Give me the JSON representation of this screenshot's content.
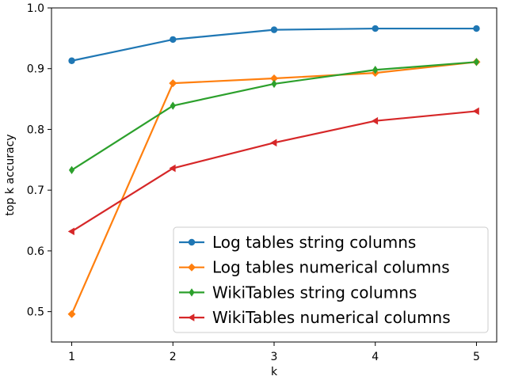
{
  "chart_data": {
    "type": "line",
    "xlabel": "k",
    "ylabel": "top k accuracy",
    "xlim": [
      0.8,
      5.2
    ],
    "ylim": [
      0.45,
      1.0
    ],
    "x": [
      1,
      2,
      3,
      4,
      5
    ],
    "xticks": [
      "1",
      "2",
      "3",
      "4",
      "5"
    ],
    "yticks": [
      "0.5",
      "0.6",
      "0.7",
      "0.8",
      "0.9",
      "1.0"
    ],
    "ytick_values": [
      0.5,
      0.6,
      0.7,
      0.8,
      0.9,
      1.0
    ],
    "grid": false,
    "legend_position": "lower-right",
    "series": [
      {
        "name": "Log tables string columns",
        "color": "#1f77b4",
        "marker": "circle",
        "values": [
          0.913,
          0.948,
          0.964,
          0.966,
          0.966
        ]
      },
      {
        "name": "Log tables numerical columns",
        "color": "#ff7f0e",
        "marker": "diamond",
        "values": [
          0.496,
          0.876,
          0.884,
          0.893,
          0.911
        ]
      },
      {
        "name": "WikiTables string columns",
        "color": "#2ca02c",
        "marker": "thin-diamond",
        "values": [
          0.733,
          0.839,
          0.875,
          0.898,
          0.911
        ]
      },
      {
        "name": "WikiTables numerical columns",
        "color": "#d62728",
        "marker": "triangle-left",
        "values": [
          0.632,
          0.736,
          0.778,
          0.814,
          0.83
        ]
      }
    ]
  }
}
